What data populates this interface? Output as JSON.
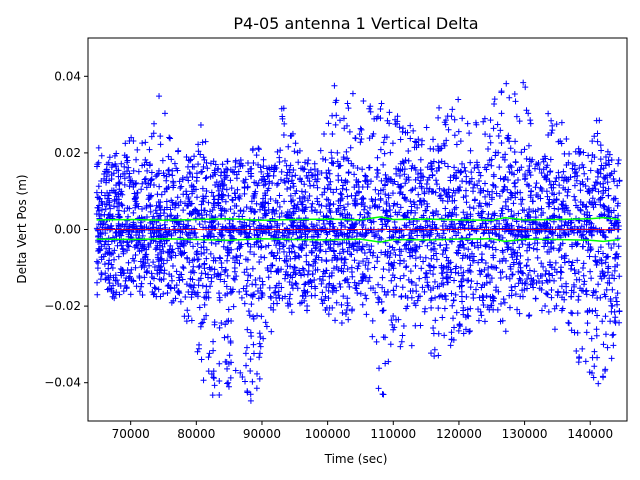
{
  "chart_data": {
    "type": "scatter",
    "title": "P4-05 antenna 1 Vertical Delta",
    "xlabel": "Time (sec)",
    "ylabel": "Delta Vert Pos (m)",
    "xlim": [
      63500,
      145600
    ],
    "ylim": [
      -0.05,
      0.05
    ],
    "xticks": [
      70000,
      80000,
      90000,
      100000,
      110000,
      120000,
      130000,
      140000
    ],
    "xtick_labels": [
      "70000",
      "80000",
      "90000",
      "100000",
      "110000",
      "120000",
      "130000",
      "140000"
    ],
    "yticks": [
      -0.04,
      -0.02,
      0.0,
      0.02,
      0.04
    ],
    "ytick_labels": [
      "−0.04",
      "−0.02",
      "0.00",
      "0.02",
      "0.04"
    ],
    "grid": false,
    "x_range": [
      64800,
      144500
    ],
    "series": [
      {
        "marker": "+",
        "color": "#0000ff",
        "envelope_x": [
          64800,
          66000,
          68000,
          70000,
          72000,
          74000,
          75000,
          76000,
          78000,
          80000,
          81000,
          82000,
          84000,
          86000,
          88000,
          89000,
          90000,
          92000,
          93000,
          94000,
          96000,
          98000,
          100000,
          101000,
          102000,
          104000,
          106000,
          108000,
          109000,
          110000,
          112000,
          114000,
          116000,
          118000,
          120000,
          122000,
          124000,
          126000,
          127000,
          128000,
          130000,
          132000,
          134000,
          136000,
          138000,
          140000,
          141000,
          142000,
          144500
        ],
        "envelope_upper": [
          0.022,
          0.022,
          0.02,
          0.027,
          0.022,
          0.032,
          0.042,
          0.025,
          0.018,
          0.022,
          0.034,
          0.02,
          0.016,
          0.018,
          0.02,
          0.026,
          0.018,
          0.022,
          0.035,
          0.028,
          0.02,
          0.018,
          0.03,
          0.045,
          0.028,
          0.038,
          0.032,
          0.035,
          0.038,
          0.032,
          0.028,
          0.025,
          0.035,
          0.032,
          0.035,
          0.028,
          0.03,
          0.038,
          0.042,
          0.035,
          0.04,
          0.018,
          0.038,
          0.026,
          0.022,
          0.02,
          0.038,
          0.022,
          0.018
        ],
        "envelope_lower": [
          -0.016,
          -0.018,
          -0.018,
          -0.016,
          -0.015,
          -0.018,
          -0.012,
          -0.02,
          -0.022,
          -0.032,
          -0.04,
          -0.048,
          -0.044,
          -0.038,
          -0.044,
          -0.05,
          -0.042,
          -0.022,
          -0.018,
          -0.02,
          -0.026,
          -0.018,
          -0.022,
          -0.03,
          -0.026,
          -0.024,
          -0.028,
          -0.045,
          -0.042,
          -0.03,
          -0.034,
          -0.026,
          -0.034,
          -0.032,
          -0.03,
          -0.026,
          -0.024,
          -0.024,
          -0.028,
          -0.02,
          -0.024,
          -0.02,
          -0.026,
          -0.03,
          -0.034,
          -0.042,
          -0.044,
          -0.04,
          -0.03
        ]
      },
      {
        "type": "line",
        "color": "#ff0000",
        "x": [
          64800,
          144500
        ],
        "y": [
          0.0,
          0.0
        ]
      },
      {
        "type": "line",
        "color": "#00ff00",
        "x": [
          64800,
          70000,
          75000,
          80000,
          85000,
          90000,
          95000,
          100000,
          105000,
          108000,
          110000,
          115000,
          120000,
          125000,
          127000,
          130000,
          135000,
          140000,
          142000,
          144500
        ],
        "y": [
          0.0025,
          0.0026,
          0.0024,
          0.0026,
          0.0028,
          0.0024,
          0.0026,
          0.0027,
          0.0025,
          0.0033,
          0.0026,
          0.0027,
          0.0025,
          0.0024,
          0.0031,
          0.0025,
          0.0026,
          0.0028,
          0.0031,
          0.0026
        ]
      },
      {
        "type": "line",
        "color": "#00ff00",
        "x": [
          64800,
          70000,
          75000,
          80000,
          85000,
          90000,
          95000,
          100000,
          105000,
          108000,
          110000,
          115000,
          120000,
          125000,
          127000,
          130000,
          135000,
          140000,
          142000,
          144500
        ],
        "y": [
          -0.0025,
          -0.0026,
          -0.0024,
          -0.0026,
          -0.0028,
          -0.0024,
          -0.0026,
          -0.0027,
          -0.0025,
          -0.0033,
          -0.0026,
          -0.0027,
          -0.0025,
          -0.0024,
          -0.0031,
          -0.0025,
          -0.0026,
          -0.0028,
          -0.0031,
          -0.0026
        ]
      }
    ]
  }
}
